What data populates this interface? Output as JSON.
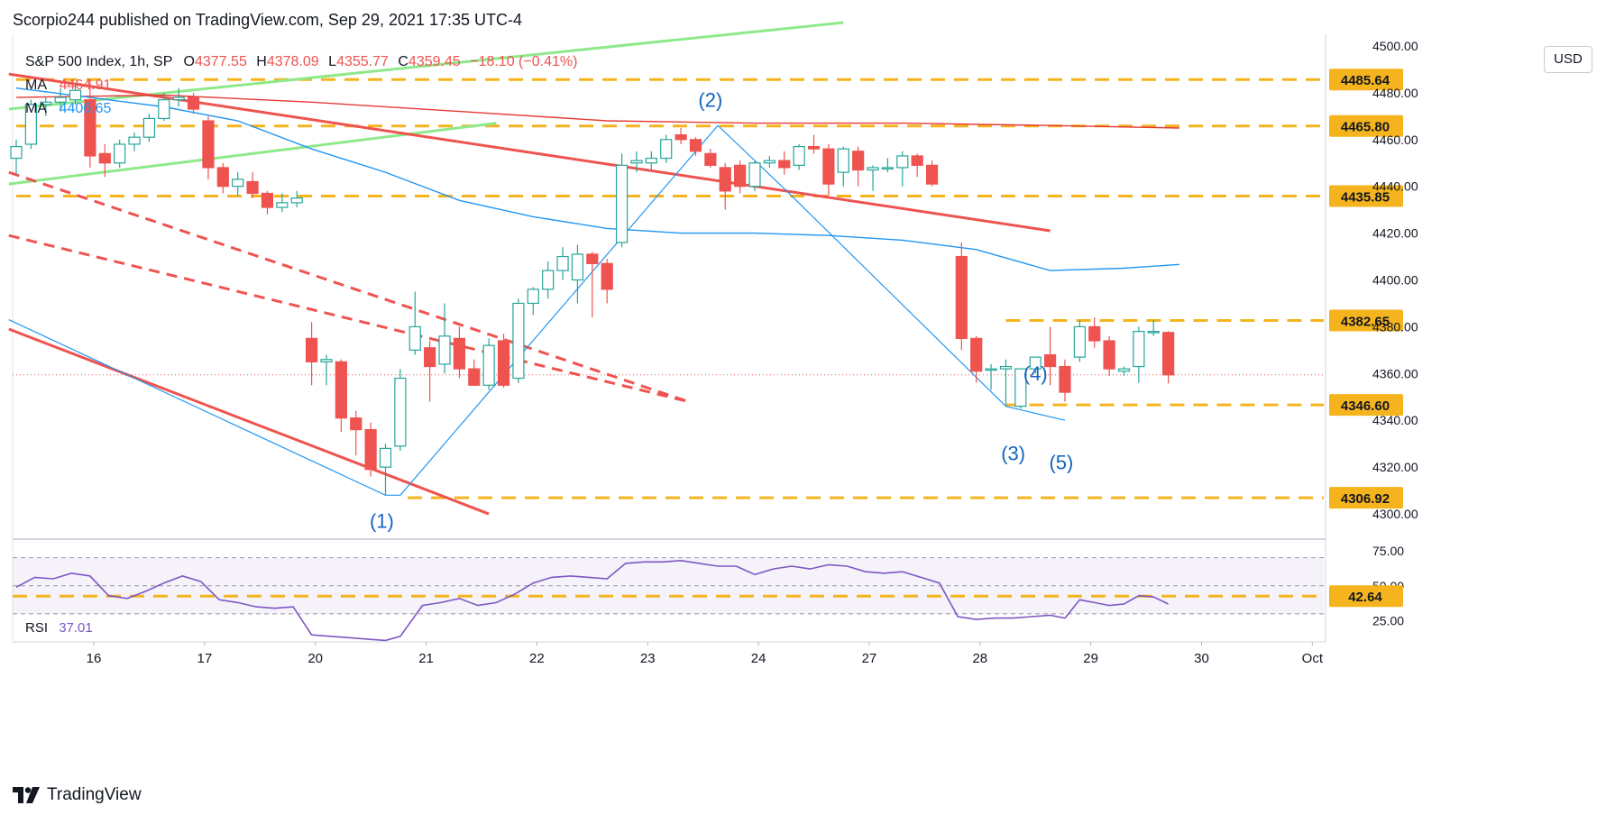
{
  "header": {
    "publisher": "Scorpio244 published on TradingView.com, Sep 29, 2021 17:35 UTC-4"
  },
  "legend": {
    "symbol": "S&P 500 Index, 1h, SP",
    "ohlc": [
      {
        "k": "O",
        "v": "4377.55"
      },
      {
        "k": "H",
        "v": "4378.09"
      },
      {
        "k": "L",
        "v": "4355.77"
      },
      {
        "k": "C",
        "v": "4359.45"
      }
    ],
    "change": "−18.10 (−0.41%)",
    "ma1_label": "MA",
    "ma1_value": "4464.91",
    "ma2_label": "MA",
    "ma2_value": "4406.65"
  },
  "currency_button": "USD",
  "rsi": {
    "label": "RSI",
    "value": "37.01"
  },
  "footer": {
    "brand": "TradingView"
  },
  "colors": {
    "up": "#26a69a",
    "down": "#ef5350",
    "level": "#f5b41d",
    "ma_red": "#e53935",
    "ma_blue": "#2196f3",
    "trend_green": "#8ee98b",
    "rsi": "#7e57c2",
    "wave_label": "#1565c0"
  },
  "chart_data": {
    "type": "candlestick",
    "y_axis": {
      "min": 4290,
      "max": 4505,
      "ticks": [
        "4500.00",
        "4480.00",
        "4460.00",
        "4440.00",
        "4420.00",
        "4400.00",
        "4380.00",
        "4360.00",
        "4340.00",
        "4320.00",
        "4300.00"
      ]
    },
    "x_axis": {
      "ticks": [
        {
          "label": "16",
          "t": 2.1
        },
        {
          "label": "17",
          "t": 5.1
        },
        {
          "label": "20",
          "t": 8.1
        },
        {
          "label": "21",
          "t": 11.1
        },
        {
          "label": "22",
          "t": 14.1
        },
        {
          "label": "23",
          "t": 17.1
        },
        {
          "label": "24",
          "t": 20.1
        },
        {
          "label": "27",
          "t": 23.1
        },
        {
          "label": "28",
          "t": 26.1
        },
        {
          "label": "29",
          "t": 29.1
        },
        {
          "label": "30",
          "t": 32.1
        },
        {
          "label": "Oct",
          "t": 35.1
        }
      ]
    },
    "candles": [
      {
        "t": 0.0,
        "o": 4452,
        "h": 4460,
        "l": 4445,
        "c": 4457
      },
      {
        "t": 0.4,
        "o": 4458,
        "h": 4477,
        "l": 4456,
        "c": 4475
      },
      {
        "t": 0.8,
        "o": 4475,
        "h": 4478,
        "l": 4470,
        "c": 4476
      },
      {
        "t": 1.2,
        "o": 4476,
        "h": 4482,
        "l": 4472,
        "c": 4478
      },
      {
        "t": 1.6,
        "o": 4477,
        "h": 4484,
        "l": 4475,
        "c": 4481
      },
      {
        "t": 2.0,
        "o": 4477,
        "h": 4486,
        "l": 4448,
        "c": 4453
      },
      {
        "t": 2.4,
        "o": 4454,
        "h": 4458,
        "l": 4444,
        "c": 4450
      },
      {
        "t": 2.8,
        "o": 4450,
        "h": 4460,
        "l": 4448,
        "c": 4458
      },
      {
        "t": 3.2,
        "o": 4458,
        "h": 4463,
        "l": 4455,
        "c": 4461
      },
      {
        "t": 3.6,
        "o": 4461,
        "h": 4471,
        "l": 4459,
        "c": 4469
      },
      {
        "t": 4.0,
        "o": 4469,
        "h": 4480,
        "l": 4468,
        "c": 4477
      },
      {
        "t": 4.4,
        "o": 4477,
        "h": 4482,
        "l": 4474,
        "c": 4478
      },
      {
        "t": 4.8,
        "o": 4478,
        "h": 4480,
        "l": 4471,
        "c": 4473
      },
      {
        "t": 5.2,
        "o": 4468,
        "h": 4470,
        "l": 4443,
        "c": 4448
      },
      {
        "t": 5.6,
        "o": 4448,
        "h": 4450,
        "l": 4437,
        "c": 4440
      },
      {
        "t": 6.0,
        "o": 4440,
        "h": 4446,
        "l": 4436,
        "c": 4443
      },
      {
        "t": 6.4,
        "o": 4442,
        "h": 4446,
        "l": 4435,
        "c": 4437
      },
      {
        "t": 6.8,
        "o": 4437,
        "h": 4438,
        "l": 4428,
        "c": 4431
      },
      {
        "t": 7.2,
        "o": 4431,
        "h": 4437,
        "l": 4429,
        "c": 4433
      },
      {
        "t": 7.6,
        "o": 4433,
        "h": 4438,
        "l": 4431,
        "c": 4435
      },
      {
        "t": 8.0,
        "o": 4375,
        "h": 4382,
        "l": 4355,
        "c": 4365
      },
      {
        "t": 8.4,
        "o": 4365,
        "h": 4368,
        "l": 4355,
        "c": 4366
      },
      {
        "t": 8.8,
        "o": 4365,
        "h": 4366,
        "l": 4335,
        "c": 4341
      },
      {
        "t": 9.2,
        "o": 4341,
        "h": 4344,
        "l": 4325,
        "c": 4336
      },
      {
        "t": 9.6,
        "o": 4336,
        "h": 4339,
        "l": 4316,
        "c": 4319
      },
      {
        "t": 10.0,
        "o": 4320,
        "h": 4330,
        "l": 4308,
        "c": 4328
      },
      {
        "t": 10.4,
        "o": 4329,
        "h": 4362,
        "l": 4327,
        "c": 4358
      },
      {
        "t": 10.8,
        "o": 4370,
        "h": 4395,
        "l": 4368,
        "c": 4380
      },
      {
        "t": 11.2,
        "o": 4371,
        "h": 4374,
        "l": 4348,
        "c": 4363
      },
      {
        "t": 11.6,
        "o": 4364,
        "h": 4390,
        "l": 4360,
        "c": 4376
      },
      {
        "t": 12.0,
        "o": 4375,
        "h": 4380,
        "l": 4358,
        "c": 4362
      },
      {
        "t": 12.4,
        "o": 4362,
        "h": 4366,
        "l": 4355,
        "c": 4355
      },
      {
        "t": 12.8,
        "o": 4355,
        "h": 4375,
        "l": 4353,
        "c": 4372
      },
      {
        "t": 13.2,
        "o": 4374,
        "h": 4377,
        "l": 4354,
        "c": 4355
      },
      {
        "t": 13.6,
        "o": 4358,
        "h": 4392,
        "l": 4356,
        "c": 4390
      },
      {
        "t": 14.0,
        "o": 4390,
        "h": 4397,
        "l": 4385,
        "c": 4396
      },
      {
        "t": 14.4,
        "o": 4396,
        "h": 4408,
        "l": 4392,
        "c": 4404
      },
      {
        "t": 14.8,
        "o": 4404,
        "h": 4414,
        "l": 4400,
        "c": 4410
      },
      {
        "t": 15.2,
        "o": 4400,
        "h": 4415,
        "l": 4390,
        "c": 4411
      },
      {
        "t": 15.6,
        "o": 4411,
        "h": 4412,
        "l": 4384,
        "c": 4407
      },
      {
        "t": 16.0,
        "o": 4407,
        "h": 4409,
        "l": 4390,
        "c": 4396
      },
      {
        "t": 16.4,
        "o": 4416,
        "h": 4454,
        "l": 4414,
        "c": 4449
      },
      {
        "t": 16.8,
        "o": 4450,
        "h": 4455,
        "l": 4446,
        "c": 4451
      },
      {
        "t": 17.2,
        "o": 4450,
        "h": 4455,
        "l": 4447,
        "c": 4452
      },
      {
        "t": 17.6,
        "o": 4452,
        "h": 4462,
        "l": 4450,
        "c": 4460
      },
      {
        "t": 18.0,
        "o": 4462,
        "h": 4465,
        "l": 4458,
        "c": 4460
      },
      {
        "t": 18.4,
        "o": 4460,
        "h": 4461,
        "l": 4453,
        "c": 4455
      },
      {
        "t": 18.8,
        "o": 4454,
        "h": 4456,
        "l": 4448,
        "c": 4449
      },
      {
        "t": 19.2,
        "o": 4448,
        "h": 4450,
        "l": 4430,
        "c": 4438
      },
      {
        "t": 19.6,
        "o": 4449,
        "h": 4451,
        "l": 4437,
        "c": 4440
      },
      {
        "t": 20.0,
        "o": 4440,
        "h": 4451,
        "l": 4438,
        "c": 4450
      },
      {
        "t": 20.4,
        "o": 4450,
        "h": 4453,
        "l": 4448,
        "c": 4451
      },
      {
        "t": 20.8,
        "o": 4451,
        "h": 4455,
        "l": 4445,
        "c": 4448
      },
      {
        "t": 21.2,
        "o": 4449,
        "h": 4458,
        "l": 4447,
        "c": 4457
      },
      {
        "t": 21.6,
        "o": 4457,
        "h": 4462,
        "l": 4454,
        "c": 4456
      },
      {
        "t": 22.0,
        "o": 4456,
        "h": 4458,
        "l": 4436,
        "c": 4441
      },
      {
        "t": 22.4,
        "o": 4446,
        "h": 4457,
        "l": 4440,
        "c": 4456
      },
      {
        "t": 22.8,
        "o": 4455,
        "h": 4457,
        "l": 4440,
        "c": 4447
      },
      {
        "t": 23.2,
        "o": 4447,
        "h": 4449,
        "l": 4438,
        "c": 4448
      },
      {
        "t": 23.6,
        "o": 4448,
        "h": 4452,
        "l": 4446,
        "c": 4448
      },
      {
        "t": 24.0,
        "o": 4448,
        "h": 4455,
        "l": 4440,
        "c": 4453
      },
      {
        "t": 24.4,
        "o": 4453,
        "h": 4454,
        "l": 4444,
        "c": 4449
      },
      {
        "t": 24.8,
        "o": 4449,
        "h": 4451,
        "l": 4440,
        "c": 4441
      },
      {
        "t": 25.6,
        "o": 4410,
        "h": 4416,
        "l": 4370,
        "c": 4375
      },
      {
        "t": 26.0,
        "o": 4375,
        "h": 4376,
        "l": 4356,
        "c": 4361
      },
      {
        "t": 26.4,
        "o": 4362,
        "h": 4364,
        "l": 4353,
        "c": 4362
      },
      {
        "t": 26.8,
        "o": 4362,
        "h": 4366,
        "l": 4346,
        "c": 4363
      },
      {
        "t": 27.2,
        "o": 4346,
        "h": 4362,
        "l": 4345,
        "c": 4362
      },
      {
        "t": 27.6,
        "o": 4362,
        "h": 4366,
        "l": 4360,
        "c": 4367
      },
      {
        "t": 28.0,
        "o": 4368,
        "h": 4380,
        "l": 4355,
        "c": 4363
      },
      {
        "t": 28.4,
        "o": 4363,
        "h": 4366,
        "l": 4348,
        "c": 4352
      },
      {
        "t": 28.8,
        "o": 4367,
        "h": 4383,
        "l": 4365,
        "c": 4380
      },
      {
        "t": 29.2,
        "o": 4380,
        "h": 4384,
        "l": 4371,
        "c": 4374
      },
      {
        "t": 29.6,
        "o": 4374,
        "h": 4376,
        "l": 4359,
        "c": 4362
      },
      {
        "t": 30.0,
        "o": 4361,
        "h": 4363,
        "l": 4359,
        "c": 4362
      },
      {
        "t": 30.4,
        "o": 4363,
        "h": 4380,
        "l": 4356,
        "c": 4378
      },
      {
        "t": 30.8,
        "o": 4378,
        "h": 4383,
        "l": 4376,
        "c": 4378
      },
      {
        "t": 31.2,
        "o": 4377.55,
        "h": 4378.09,
        "l": 4355.77,
        "c": 4359.45
      }
    ],
    "moving_averages": [
      {
        "name": "MA",
        "value_label": "4464.91",
        "color": "#e53935",
        "points": [
          [
            0,
            4478
          ],
          [
            4,
            4479
          ],
          [
            8,
            4476
          ],
          [
            12,
            4472
          ],
          [
            16,
            4468
          ],
          [
            20,
            4467
          ],
          [
            24,
            4467
          ],
          [
            28,
            4466
          ],
          [
            31.5,
            4464.91
          ]
        ]
      },
      {
        "name": "MA",
        "value_label": "4406.65",
        "color": "#2196f3",
        "points": [
          [
            0,
            4482
          ],
          [
            2,
            4478
          ],
          [
            4,
            4474
          ],
          [
            6,
            4468
          ],
          [
            8,
            4456
          ],
          [
            10,
            4446
          ],
          [
            12,
            4434
          ],
          [
            14,
            4427
          ],
          [
            16,
            4422
          ],
          [
            18,
            4420
          ],
          [
            20,
            4420
          ],
          [
            22,
            4419
          ],
          [
            24,
            4417
          ],
          [
            26,
            4413
          ],
          [
            28,
            4404
          ],
          [
            30,
            4405
          ],
          [
            31.5,
            4406.65
          ]
        ]
      }
    ],
    "price_levels": [
      {
        "label": "4485.64",
        "value": 4485.64,
        "t_start": 0
      },
      {
        "label": "4465.80",
        "value": 4465.8,
        "t_start": 0
      },
      {
        "label": "4435.85",
        "value": 4435.85,
        "t_start": 0
      },
      {
        "label": "4382.65",
        "value": 4382.65,
        "t_start": 26.8
      },
      {
        "label": "4346.60",
        "value": 4346.6,
        "t_start": 26.8
      },
      {
        "label": "4306.92",
        "value": 4306.92,
        "t_start": 10.6
      }
    ],
    "last_price": 4359.45,
    "trend_lines": [
      {
        "color": "#8ee98b",
        "dash": false,
        "from": [
          -0.2,
          4473
        ],
        "to": [
          22.4,
          4510
        ]
      },
      {
        "color": "#8ee98b",
        "dash": false,
        "from": [
          -0.2,
          4441
        ],
        "to": [
          13.0,
          4467
        ]
      },
      {
        "color": "#ef5350",
        "dash": false,
        "from": [
          -0.2,
          4488
        ],
        "to": [
          28.0,
          4421
        ]
      },
      {
        "color": "#ef5350",
        "dash": true,
        "from": [
          -0.2,
          4446
        ],
        "to": [
          18.2,
          4348
        ]
      },
      {
        "color": "#ef5350",
        "dash": true,
        "from": [
          -0.2,
          4419
        ],
        "to": [
          18.2,
          4348
        ]
      },
      {
        "color": "#ef5350",
        "dash": false,
        "from": [
          -0.2,
          4379
        ],
        "to": [
          12.8,
          4300
        ]
      }
    ],
    "wave_path": {
      "color": "#2196f3",
      "points": [
        [
          -0.2,
          4383
        ],
        [
          10.0,
          4308
        ],
        [
          10.4,
          4308
        ],
        [
          19.0,
          4466
        ],
        [
          20.8,
          4439
        ],
        [
          26.8,
          4346
        ],
        [
          28.4,
          4340
        ]
      ]
    },
    "wave_labels": [
      {
        "text": "(1)",
        "t": 9.9,
        "y": 4294
      },
      {
        "text": "(2)",
        "t": 18.8,
        "y": 4474
      },
      {
        "text": "(3)",
        "t": 27.0,
        "y": 4323
      },
      {
        "text": "(4)",
        "t": 27.6,
        "y": 4357
      },
      {
        "text": "(5)",
        "t": 28.3,
        "y": 4319
      }
    ]
  },
  "rsi_data": {
    "y_axis": {
      "min": 10,
      "max": 82,
      "ticks": [
        "75.00",
        "50.00",
        "25.00"
      ]
    },
    "bands": [
      70,
      50,
      30
    ],
    "level": {
      "label": "42.64",
      "value": 42.64
    },
    "points": [
      [
        0,
        49
      ],
      [
        0.5,
        56
      ],
      [
        1,
        55
      ],
      [
        1.5,
        59
      ],
      [
        2,
        57
      ],
      [
        2.5,
        43
      ],
      [
        3,
        41
      ],
      [
        3.5,
        46
      ],
      [
        4,
        52
      ],
      [
        4.5,
        57
      ],
      [
        5,
        53
      ],
      [
        5.5,
        40
      ],
      [
        6,
        38
      ],
      [
        6.5,
        35
      ],
      [
        7,
        34
      ],
      [
        7.5,
        35
      ],
      [
        8,
        15
      ],
      [
        8.5,
        14
      ],
      [
        9,
        13
      ],
      [
        9.5,
        12
      ],
      [
        10,
        11
      ],
      [
        10.4,
        14
      ],
      [
        11,
        36
      ],
      [
        11.5,
        38
      ],
      [
        12,
        41
      ],
      [
        12.5,
        36
      ],
      [
        13,
        38
      ],
      [
        13.5,
        44
      ],
      [
        14,
        52
      ],
      [
        14.5,
        56
      ],
      [
        15,
        57
      ],
      [
        15.5,
        56
      ],
      [
        16,
        55
      ],
      [
        16.5,
        66
      ],
      [
        17,
        67
      ],
      [
        17.5,
        67
      ],
      [
        18,
        68
      ],
      [
        18.5,
        66
      ],
      [
        19,
        64
      ],
      [
        19.5,
        64
      ],
      [
        20,
        58
      ],
      [
        20.5,
        62
      ],
      [
        21,
        64
      ],
      [
        21.5,
        62
      ],
      [
        22,
        65
      ],
      [
        22.5,
        64
      ],
      [
        23,
        60
      ],
      [
        23.5,
        59
      ],
      [
        24,
        60
      ],
      [
        24.5,
        56
      ],
      [
        25,
        52
      ],
      [
        25.5,
        28
      ],
      [
        26,
        26
      ],
      [
        26.5,
        27
      ],
      [
        27,
        27
      ],
      [
        27.5,
        28
      ],
      [
        28,
        29
      ],
      [
        28.4,
        27
      ],
      [
        28.8,
        40
      ],
      [
        29.2,
        38
      ],
      [
        29.6,
        36
      ],
      [
        30,
        37
      ],
      [
        30.4,
        43
      ],
      [
        30.8,
        42
      ],
      [
        31.2,
        37.01
      ]
    ]
  }
}
